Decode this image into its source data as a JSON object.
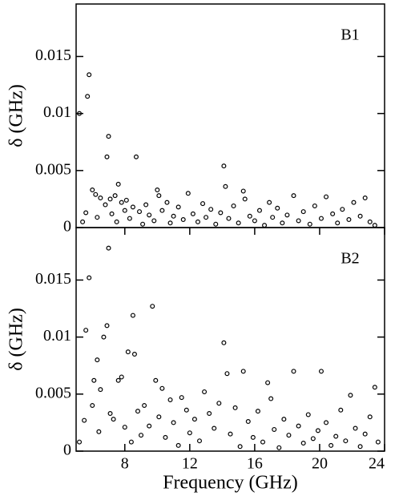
{
  "chart_data": [
    {
      "type": "scatter",
      "annotation": "B1",
      "y_label": "δ (GHz)",
      "color": "#000000",
      "xlim": [
        5,
        24
      ],
      "ylim": [
        0,
        0.0196
      ],
      "yticks": [
        0,
        0.005,
        0.01,
        0.015
      ],
      "x": [
        5.2,
        5.4,
        5.6,
        5.7,
        5.8,
        6.0,
        6.2,
        6.3,
        6.5,
        6.8,
        6.9,
        7.0,
        7.1,
        7.2,
        7.4,
        7.5,
        7.6,
        7.8,
        8.0,
        8.1,
        8.3,
        8.5,
        8.7,
        8.9,
        9.1,
        9.3,
        9.5,
        9.8,
        10.0,
        10.1,
        10.3,
        10.6,
        10.8,
        11.0,
        11.3,
        11.6,
        11.9,
        12.2,
        12.5,
        12.8,
        13.0,
        13.3,
        13.6,
        13.9,
        14.1,
        14.2,
        14.4,
        14.7,
        15.0,
        15.3,
        15.4,
        15.7,
        16.0,
        16.3,
        16.6,
        16.9,
        17.1,
        17.4,
        17.7,
        18.0,
        18.4,
        18.7,
        19.0,
        19.4,
        19.7,
        20.1,
        20.4,
        20.8,
        21.1,
        21.4,
        21.8,
        22.1,
        22.5,
        22.8,
        23.1,
        23.4
      ],
      "values": [
        0.01,
        0.0005,
        0.0013,
        0.0115,
        0.0134,
        0.0033,
        0.0029,
        0.0009,
        0.0026,
        0.002,
        0.0062,
        0.008,
        0.0025,
        0.0012,
        0.0028,
        0.0005,
        0.0038,
        0.0022,
        0.0015,
        0.0024,
        0.0008,
        0.0018,
        0.0062,
        0.0014,
        0.0003,
        0.002,
        0.0011,
        0.0006,
        0.0033,
        0.0028,
        0.0015,
        0.0022,
        0.0004,
        0.001,
        0.0018,
        0.0007,
        0.003,
        0.0012,
        0.0005,
        0.0021,
        0.0009,
        0.0016,
        0.0003,
        0.0013,
        0.0054,
        0.0036,
        0.0008,
        0.0019,
        0.0004,
        0.0032,
        0.0025,
        0.001,
        0.0006,
        0.0015,
        0.0002,
        0.0022,
        0.0009,
        0.0017,
        0.0004,
        0.0011,
        0.0028,
        0.0006,
        0.0014,
        0.0003,
        0.0019,
        0.0008,
        0.0027,
        0.0012,
        0.0004,
        0.0016,
        0.0007,
        0.0022,
        0.001,
        0.0026,
        0.0005,
        0.0002
      ]
    },
    {
      "type": "scatter",
      "annotation": "B2",
      "y_label": "δ (GHz)",
      "x_label": "Frequency (GHz)",
      "color": "#000000",
      "xlim": [
        5,
        24
      ],
      "ylim": [
        0,
        0.0196
      ],
      "xticks": [
        8,
        12,
        16,
        20,
        24
      ],
      "yticks": [
        0,
        0.005,
        0.01,
        0.015
      ],
      "x": [
        5.2,
        5.5,
        5.6,
        5.8,
        6.0,
        6.1,
        6.3,
        6.4,
        6.5,
        6.7,
        6.9,
        7.0,
        7.1,
        7.3,
        7.6,
        7.8,
        8.0,
        8.2,
        8.4,
        8.5,
        8.6,
        8.8,
        9.0,
        9.2,
        9.5,
        9.7,
        9.9,
        10.1,
        10.3,
        10.5,
        10.8,
        11.0,
        11.3,
        11.5,
        11.8,
        12.0,
        12.3,
        12.6,
        12.9,
        13.2,
        13.5,
        13.8,
        14.1,
        14.3,
        14.5,
        14.8,
        15.1,
        15.3,
        15.6,
        15.9,
        16.2,
        16.5,
        16.8,
        17.0,
        17.2,
        17.5,
        17.8,
        18.1,
        18.4,
        18.7,
        19.0,
        19.3,
        19.6,
        19.9,
        20.1,
        20.4,
        20.7,
        21.0,
        21.3,
        21.6,
        21.9,
        22.2,
        22.5,
        22.8,
        23.1,
        23.4,
        23.6
      ],
      "values": [
        0.0008,
        0.0027,
        0.0106,
        0.0152,
        0.004,
        0.0062,
        0.008,
        0.0017,
        0.0054,
        0.01,
        0.011,
        0.0178,
        0.0033,
        0.0028,
        0.0062,
        0.0065,
        0.0021,
        0.0087,
        0.0008,
        0.0119,
        0.0085,
        0.0035,
        0.0014,
        0.004,
        0.0022,
        0.0127,
        0.0062,
        0.003,
        0.0055,
        0.0012,
        0.0045,
        0.0025,
        0.0005,
        0.0047,
        0.0036,
        0.0016,
        0.0028,
        0.0009,
        0.0052,
        0.0033,
        0.002,
        0.0042,
        0.0095,
        0.0068,
        0.0015,
        0.0038,
        0.0004,
        0.007,
        0.0026,
        0.0012,
        0.0035,
        0.0008,
        0.006,
        0.0046,
        0.0019,
        0.0003,
        0.0028,
        0.0014,
        0.007,
        0.0022,
        0.0007,
        0.0032,
        0.0011,
        0.0018,
        0.007,
        0.0025,
        0.0005,
        0.0013,
        0.0036,
        0.0009,
        0.0049,
        0.002,
        0.0004,
        0.0015,
        0.003,
        0.0056,
        0.0008
      ]
    }
  ]
}
